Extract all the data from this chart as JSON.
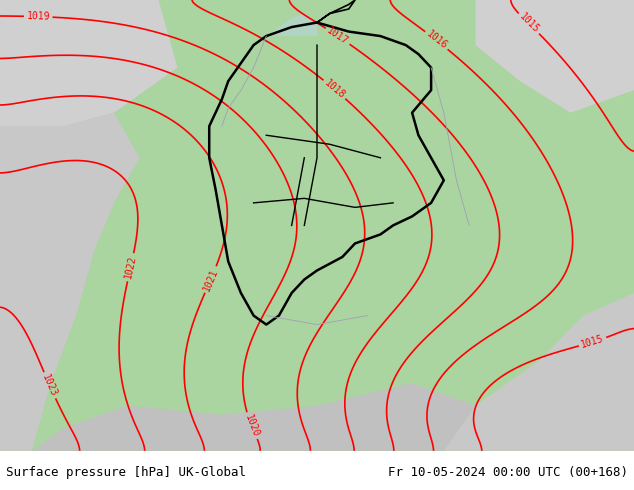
{
  "title_left": "Surface pressure [hPa] UK-Global",
  "title_right": "Fr 10-05-2024 00:00 UTC (00+168)",
  "title_fontsize": 9,
  "title_color": "#000000",
  "background_color": "#ffffff",
  "map_bg_green": "#aad4a0",
  "map_bg_gray": "#d0d0d0",
  "map_bg_light_gray": "#c8c8c8",
  "isobar_color": "#ff0000",
  "isobar_linewidth": 1.2,
  "border_color": "#000000",
  "border_linewidth": 1.8,
  "river_color": "#a0a0b8",
  "river_linewidth": 0.6,
  "label_fontsize": 7,
  "pressure_min": 1013,
  "pressure_max": 1024,
  "pressure_step": 1,
  "figwidth": 6.34,
  "figheight": 4.9,
  "dpi": 100
}
